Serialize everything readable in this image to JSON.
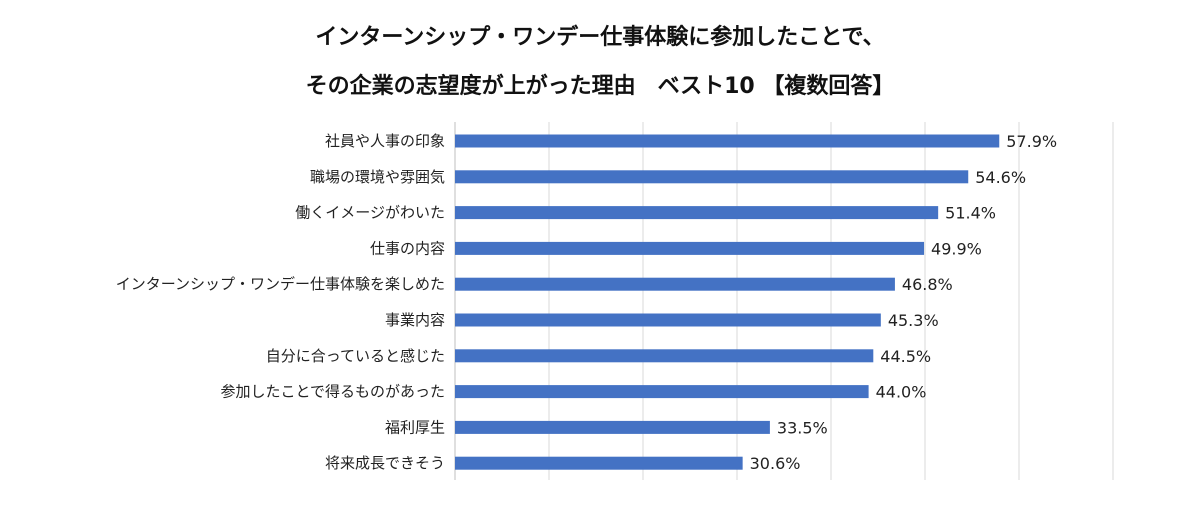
{
  "chart_data": {
    "type": "bar",
    "orientation": "horizontal",
    "title_lines": [
      "インターンシップ・ワンデー仕事体験に参加したことで、",
      "その企業の志望度が上がった理由　ベスト10 【複数回答】"
    ],
    "categories": [
      "社員や人事の印象",
      "職場の環境や雰囲気",
      "働くイメージがわいた",
      "仕事の内容",
      "インターンシップ・ワンデー仕事体験を楽しめた",
      "事業内容",
      "自分に合っていると感じた",
      "参加したことで得るものがあった",
      "福利厚生",
      "将来成長できそう"
    ],
    "values": [
      57.9,
      54.6,
      51.4,
      49.9,
      46.8,
      45.3,
      44.5,
      44.0,
      33.5,
      30.6
    ],
    "value_labels": [
      "57.9%",
      "54.6%",
      "51.4%",
      "49.9%",
      "46.8%",
      "45.3%",
      "44.5%",
      "44.0%",
      "33.5%",
      "30.6%"
    ],
    "xlim": [
      0,
      70
    ],
    "grid": true,
    "legend": "none",
    "bar_color": "#4472C4",
    "grid_color": "#D9D9D9"
  }
}
